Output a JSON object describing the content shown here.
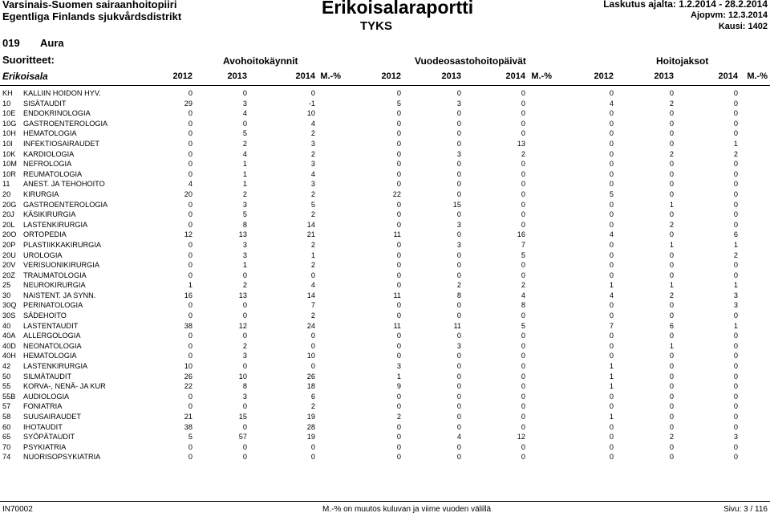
{
  "header": {
    "org_line1": "Varsinais-Suomen sairaanhoitopiiri",
    "org_line2": "Egentliga Finlands sjukvårdsdistrikt",
    "report_title": "Erikoisalaraportti",
    "sub_title": "TYKS",
    "billing_period": "Laskutus ajalta: 1.2.2014 - 28.2.2014",
    "run_date": "Ajopvm: 12.3.2014",
    "period": "Kausi: 1402",
    "municipality_code": "019",
    "municipality_name": "Aura",
    "products_label": "Suoritteet:",
    "specialty_label": "Erikoisala",
    "groups": [
      "Avohoitokäynnit",
      "Vuodeosastohoitopäivät",
      "Hoitojaksot"
    ],
    "column_headers": [
      "2012",
      "2013",
      "2014",
      "M.-%",
      "2012",
      "2013",
      "2014",
      "M.-%",
      "2012",
      "2013",
      "2014",
      "M.-%"
    ]
  },
  "rows": [
    {
      "code": "KH",
      "name": "KALLIIN HOIDON HYV.",
      "v": [
        "0",
        "0",
        "0",
        "",
        "0",
        "0",
        "0",
        "",
        "0",
        "0",
        "0",
        ""
      ]
    },
    {
      "code": "10",
      "name": "SISÄTAUDIT",
      "v": [
        "29",
        "3",
        "-1",
        "",
        "5",
        "3",
        "0",
        "",
        "4",
        "2",
        "0",
        ""
      ]
    },
    {
      "code": "10E",
      "name": "ENDOKRINOLOGIA",
      "v": [
        "0",
        "4",
        "10",
        "",
        "0",
        "0",
        "0",
        "",
        "0",
        "0",
        "0",
        ""
      ]
    },
    {
      "code": "10G",
      "name": "GASTROENTEROLOGIA",
      "v": [
        "0",
        "0",
        "4",
        "",
        "0",
        "0",
        "0",
        "",
        "0",
        "0",
        "0",
        ""
      ]
    },
    {
      "code": "10H",
      "name": "HEMATOLOGIA",
      "v": [
        "0",
        "5",
        "2",
        "",
        "0",
        "0",
        "0",
        "",
        "0",
        "0",
        "0",
        ""
      ]
    },
    {
      "code": "10I",
      "name": "INFEKTIOSAIRAUDET",
      "v": [
        "0",
        "2",
        "3",
        "",
        "0",
        "0",
        "13",
        "",
        "0",
        "0",
        "1",
        ""
      ]
    },
    {
      "code": "10K",
      "name": "KARDIOLOGIA",
      "v": [
        "0",
        "4",
        "2",
        "",
        "0",
        "3",
        "2",
        "",
        "0",
        "2",
        "2",
        ""
      ]
    },
    {
      "code": "10M",
      "name": "NEFROLOGIA",
      "v": [
        "0",
        "1",
        "3",
        "",
        "0",
        "0",
        "0",
        "",
        "0",
        "0",
        "0",
        ""
      ]
    },
    {
      "code": "10R",
      "name": "REUMATOLOGIA",
      "v": [
        "0",
        "1",
        "4",
        "",
        "0",
        "0",
        "0",
        "",
        "0",
        "0",
        "0",
        ""
      ]
    },
    {
      "code": "11",
      "name": "ANEST. JA TEHOHOITO",
      "v": [
        "4",
        "1",
        "3",
        "",
        "0",
        "0",
        "0",
        "",
        "0",
        "0",
        "0",
        ""
      ]
    },
    {
      "code": "20",
      "name": "KIRURGIA",
      "v": [
        "20",
        "2",
        "2",
        "",
        "22",
        "0",
        "0",
        "",
        "5",
        "0",
        "0",
        ""
      ]
    },
    {
      "code": "20G",
      "name": "GASTROENTEROLOGIA",
      "v": [
        "0",
        "3",
        "5",
        "",
        "0",
        "15",
        "0",
        "",
        "0",
        "1",
        "0",
        ""
      ]
    },
    {
      "code": "20J",
      "name": "KÄSIKIRURGIA",
      "v": [
        "0",
        "5",
        "2",
        "",
        "0",
        "0",
        "0",
        "",
        "0",
        "0",
        "0",
        ""
      ]
    },
    {
      "code": "20L",
      "name": "LASTENKIRURGIA",
      "v": [
        "0",
        "8",
        "14",
        "",
        "0",
        "3",
        "0",
        "",
        "0",
        "2",
        "0",
        ""
      ]
    },
    {
      "code": "20O",
      "name": "ORTOPEDIA",
      "v": [
        "12",
        "13",
        "21",
        "",
        "11",
        "0",
        "16",
        "",
        "4",
        "0",
        "6",
        ""
      ]
    },
    {
      "code": "20P",
      "name": "PLASTIIKKAKIRURGIA",
      "v": [
        "0",
        "3",
        "2",
        "",
        "0",
        "3",
        "7",
        "",
        "0",
        "1",
        "1",
        ""
      ]
    },
    {
      "code": "20U",
      "name": "UROLOGIA",
      "v": [
        "0",
        "3",
        "1",
        "",
        "0",
        "0",
        "5",
        "",
        "0",
        "0",
        "2",
        ""
      ]
    },
    {
      "code": "20V",
      "name": "VERISUONIKIRURGIA",
      "v": [
        "0",
        "1",
        "2",
        "",
        "0",
        "0",
        "0",
        "",
        "0",
        "0",
        "0",
        ""
      ]
    },
    {
      "code": "20Z",
      "name": "TRAUMATOLOGIA",
      "v": [
        "0",
        "0",
        "0",
        "",
        "0",
        "0",
        "0",
        "",
        "0",
        "0",
        "0",
        ""
      ]
    },
    {
      "code": "25",
      "name": "NEUROKIRURGIA",
      "v": [
        "1",
        "2",
        "4",
        "",
        "0",
        "2",
        "2",
        "",
        "1",
        "1",
        "1",
        ""
      ]
    },
    {
      "code": "30",
      "name": "NAISTENT. JA SYNN.",
      "v": [
        "16",
        "13",
        "14",
        "",
        "11",
        "8",
        "4",
        "",
        "4",
        "2",
        "3",
        ""
      ]
    },
    {
      "code": "30Q",
      "name": "PERINATOLOGIA",
      "v": [
        "0",
        "0",
        "7",
        "",
        "0",
        "0",
        "8",
        "",
        "0",
        "0",
        "3",
        ""
      ]
    },
    {
      "code": "30S",
      "name": "SÄDEHOITO",
      "v": [
        "0",
        "0",
        "2",
        "",
        "0",
        "0",
        "0",
        "",
        "0",
        "0",
        "0",
        ""
      ]
    },
    {
      "code": "40",
      "name": "LASTENTAUDIT",
      "v": [
        "38",
        "12",
        "24",
        "",
        "11",
        "11",
        "5",
        "",
        "7",
        "6",
        "1",
        ""
      ]
    },
    {
      "code": "40A",
      "name": "ALLERGOLOGIA",
      "v": [
        "0",
        "0",
        "0",
        "",
        "0",
        "0",
        "0",
        "",
        "0",
        "0",
        "0",
        ""
      ]
    },
    {
      "code": "40D",
      "name": "NEONATOLOGIA",
      "v": [
        "0",
        "2",
        "0",
        "",
        "0",
        "3",
        "0",
        "",
        "0",
        "1",
        "0",
        ""
      ]
    },
    {
      "code": "40H",
      "name": "HEMATOLOGIA",
      "v": [
        "0",
        "3",
        "10",
        "",
        "0",
        "0",
        "0",
        "",
        "0",
        "0",
        "0",
        ""
      ]
    },
    {
      "code": "42",
      "name": "LASTENKIRURGIA",
      "v": [
        "10",
        "0",
        "0",
        "",
        "3",
        "0",
        "0",
        "",
        "1",
        "0",
        "0",
        ""
      ]
    },
    {
      "code": "50",
      "name": "SILMÄTAUDIT",
      "v": [
        "26",
        "10",
        "26",
        "",
        "1",
        "0",
        "0",
        "",
        "1",
        "0",
        "0",
        ""
      ]
    },
    {
      "code": "55",
      "name": "KORVA-, NENÄ- JA KUR",
      "v": [
        "22",
        "8",
        "18",
        "",
        "9",
        "0",
        "0",
        "",
        "1",
        "0",
        "0",
        ""
      ]
    },
    {
      "code": "55B",
      "name": "AUDIOLOGIA",
      "v": [
        "0",
        "3",
        "6",
        "",
        "0",
        "0",
        "0",
        "",
        "0",
        "0",
        "0",
        ""
      ]
    },
    {
      "code": "57",
      "name": "FONIATRIA",
      "v": [
        "0",
        "0",
        "2",
        "",
        "0",
        "0",
        "0",
        "",
        "0",
        "0",
        "0",
        ""
      ]
    },
    {
      "code": "58",
      "name": "SUUSAIRAUDET",
      "v": [
        "21",
        "15",
        "19",
        "",
        "2",
        "0",
        "0",
        "",
        "1",
        "0",
        "0",
        ""
      ]
    },
    {
      "code": "60",
      "name": "IHOTAUDIT",
      "v": [
        "38",
        "0",
        "28",
        "",
        "0",
        "0",
        "0",
        "",
        "0",
        "0",
        "0",
        ""
      ]
    },
    {
      "code": "65",
      "name": "SYÖPÄTAUDIT",
      "v": [
        "5",
        "57",
        "19",
        "",
        "0",
        "4",
        "12",
        "",
        "0",
        "2",
        "3",
        ""
      ]
    },
    {
      "code": "70",
      "name": "PSYKIATRIA",
      "v": [
        "0",
        "0",
        "0",
        "",
        "0",
        "0",
        "0",
        "",
        "0",
        "0",
        "0",
        ""
      ]
    },
    {
      "code": "74",
      "name": "NUORISOPSYKIATRIA",
      "v": [
        "0",
        "0",
        "0",
        "",
        "0",
        "0",
        "0",
        "",
        "0",
        "0",
        "0",
        ""
      ]
    }
  ],
  "footer": {
    "left": "IN70002",
    "center": "M.-% on muutos kuluvan ja viime vuoden välillä",
    "right": "Sivu: 3 / 116"
  }
}
